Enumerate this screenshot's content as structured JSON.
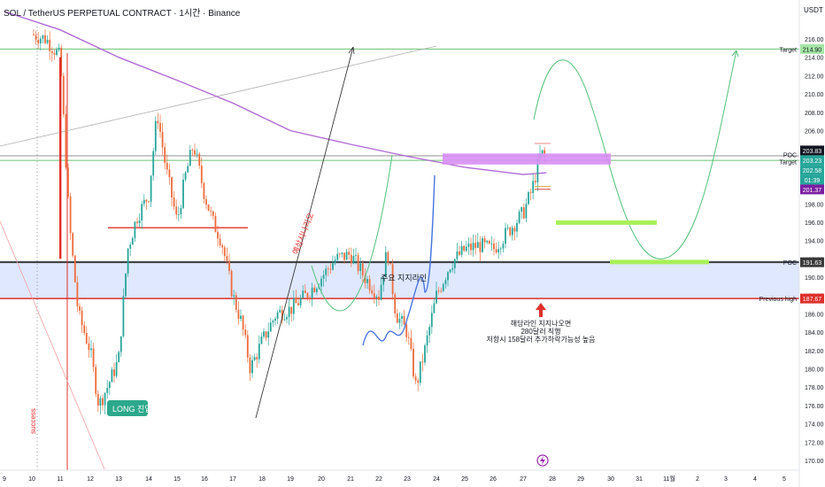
{
  "header": {
    "symbol_title": "SOL / TetherUS PERPETUAL CONTRACT · 1시간 · Binance",
    "currency": "USDT"
  },
  "colors": {
    "up": "#26a69a",
    "down": "#ef6c3a",
    "ma": "#b06ad6",
    "support_band": "#d6e2ff",
    "target_line": "#6cc070",
    "red_line": "#e0302b",
    "poc_zone": "#d98ef5",
    "green_zone": "#a8f05a",
    "projection_green": "#54c27a",
    "projection_blue": "#4a76e0",
    "gray_line": "#3a3a3a"
  },
  "chart_data": {
    "type": "line",
    "title": "SOL / TetherUS PERPETUAL CONTRACT · 1시간 · Binance",
    "ylabel": "USDT",
    "ylim": [
      169.5,
      217.5
    ],
    "x_ticks": [
      "9",
      "10",
      "11",
      "12",
      "13",
      "14",
      "15",
      "16",
      "17",
      "18",
      "19",
      "20",
      "21",
      "22",
      "23",
      "24",
      "25",
      "26",
      "27",
      "28",
      "29",
      "30",
      "31",
      "11월",
      "2",
      "3",
      "4",
      "5"
    ],
    "y_ticks": [
      170.0,
      172.0,
      174.0,
      176.0,
      178.0,
      180.0,
      182.0,
      184.0,
      186.0,
      188.0,
      190.0,
      192.0,
      194.0,
      196.0,
      198.0,
      200.0,
      202.0,
      204.0,
      206.0,
      208.0,
      210.0,
      212.0,
      214.0,
      216.0
    ],
    "series": [
      {
        "values": [
          [
            "10",
            216.5
          ],
          [
            "10.5",
            216.0
          ],
          [
            "11",
            214.0
          ],
          [
            "11.3",
            196.0
          ],
          [
            "11.6",
            186.0
          ],
          [
            "12",
            182.0
          ],
          [
            "12.3",
            176.0
          ],
          [
            "12.6",
            178.0
          ],
          [
            "13",
            181.0
          ],
          [
            "13.3",
            193.0
          ],
          [
            "13.6",
            196.5
          ],
          [
            "14",
            199.0
          ],
          [
            "14.3",
            208.0
          ],
          [
            "14.6",
            202.0
          ],
          [
            "15",
            196.0
          ],
          [
            "15.3",
            201.0
          ],
          [
            "15.6",
            204.5
          ],
          [
            "16",
            199.0
          ],
          [
            "16.3",
            196.0
          ],
          [
            "16.6",
            194.0
          ],
          [
            "17",
            188.0
          ],
          [
            "17.3",
            185.0
          ],
          [
            "17.6",
            180.0
          ],
          [
            "18",
            183.0
          ],
          [
            "18.5",
            186.0
          ],
          [
            "19",
            186.5
          ],
          [
            "19.5",
            188.0
          ],
          [
            "20",
            190.0
          ],
          [
            "20.5",
            192.0
          ],
          [
            "21",
            192.5
          ],
          [
            "21.5",
            190.0
          ],
          [
            "22",
            188.0
          ],
          [
            "22.3",
            193.0
          ],
          [
            "22.6",
            186.0
          ],
          [
            "23",
            184.0
          ],
          [
            "23.3",
            178.0
          ],
          [
            "23.6",
            182.0
          ],
          [
            "24",
            188.0
          ],
          [
            "24.5",
            191.5
          ],
          [
            "25",
            193.0
          ],
          [
            "25.5",
            193.5
          ],
          [
            "26",
            193.0
          ],
          [
            "26.5",
            195.0
          ],
          [
            "27",
            197.0
          ],
          [
            "27.3",
            199.5
          ],
          [
            "27.6",
            203.5
          ],
          [
            "27.8",
            203.2
          ]
        ]
      }
    ],
    "moving_average": [
      [
        "9",
        219.0
      ],
      [
        "11",
        217.0
      ],
      [
        "13",
        214.0
      ],
      [
        "15",
        211.5
      ],
      [
        "17",
        209.0
      ],
      [
        "19",
        206.0
      ],
      [
        "21",
        204.5
      ],
      [
        "23",
        203.2
      ],
      [
        "25",
        202.0
      ],
      [
        "27",
        201.2
      ],
      [
        "27.8",
        201.4
      ]
    ],
    "horizontal_levels": [
      {
        "label": "Target",
        "value": 214.9
      },
      {
        "label": "POC",
        "value": 203.25
      },
      {
        "label": "Target",
        "value": 202.8
      },
      {
        "label": "POC",
        "value": 191.63
      },
      {
        "label": "Previous high",
        "value": 187.67
      }
    ],
    "price_tags": [
      {
        "value": 214.9,
        "text": "214.90"
      },
      {
        "value": 203.83,
        "text": "203.83"
      },
      {
        "value": 203.23,
        "text": "203.23"
      },
      {
        "value": 202.58,
        "text": "202.58"
      },
      {
        "value": 201.6,
        "text": "01:39"
      },
      {
        "value": 201.37,
        "text": "201.37"
      },
      {
        "value": 191.63,
        "text": "191.63"
      },
      {
        "value": 187.67,
        "text": "187.67"
      }
    ],
    "annotations": [
      {
        "text": "LONG 진입"
      },
      {
        "text": "주요 지지라인"
      },
      {
        "text": "예상시나리오"
      },
      {
        "text": "success"
      },
      {
        "text": "해당라인 지지나오면"
      },
      {
        "text": "280달러 직행"
      },
      {
        "text": "저항시 158달러 추가하락가능성 높음"
      }
    ],
    "grid": false,
    "legend": "none"
  }
}
